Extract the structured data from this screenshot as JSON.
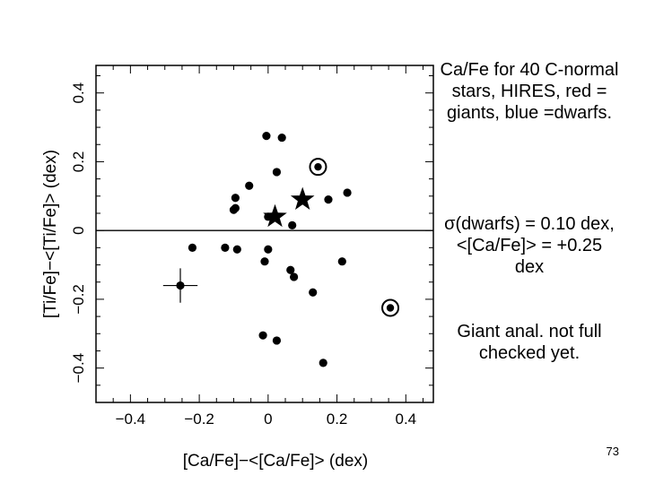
{
  "notes": {
    "line1": "Ca/Fe for 40 C-normal stars, HIRES, red = giants, blue =dwarfs.",
    "line2": "σ(dwarfs) = 0.10 dex, <[Ca/Fe]> = +0.25 dex",
    "line3": "Giant anal. not full checked yet."
  },
  "slide_number": "73",
  "chart_data": {
    "type": "scatter",
    "title": "",
    "xlabel": "[Ca/Fe]−<[Ca/Fe]> (dex)",
    "ylabel": "[Ti/Fe]−<[Ti/Fe]> (dex)",
    "xlim": [
      -0.5,
      0.48
    ],
    "ylim": [
      -0.5,
      0.48
    ],
    "x_ticks": [
      -0.4,
      -0.2,
      0,
      0.2,
      0.4
    ],
    "x_tick_labels": [
      "−0.4",
      "−0.2",
      "0",
      "0.2",
      "0.4"
    ],
    "y_ticks": [
      -0.4,
      -0.2,
      0,
      0.2,
      0.4
    ],
    "y_tick_labels": [
      "−0.4",
      "−0.2",
      "0",
      "0.2",
      "0.4"
    ],
    "reference_line_y": 0,
    "grid": false,
    "colors": {
      "markers": "#000000",
      "axes": "#000000"
    },
    "points": [
      {
        "x": -0.005,
        "y": 0.275
      },
      {
        "x": 0.04,
        "y": 0.27
      },
      {
        "x": 0.025,
        "y": 0.17
      },
      {
        "x": -0.095,
        "y": 0.095
      },
      {
        "x": -0.055,
        "y": 0.13
      },
      {
        "x": -0.095,
        "y": 0.065
      },
      {
        "x": -0.1,
        "y": 0.06
      },
      {
        "x": 0.175,
        "y": 0.09
      },
      {
        "x": 0.23,
        "y": 0.11
      },
      {
        "x": 0.07,
        "y": 0.015
      },
      {
        "x": 0.0,
        "y": 0.04
      },
      {
        "x": -0.22,
        "y": -0.05
      },
      {
        "x": -0.125,
        "y": -0.05
      },
      {
        "x": -0.09,
        "y": -0.055
      },
      {
        "x": 0.0,
        "y": -0.055
      },
      {
        "x": -0.01,
        "y": -0.09
      },
      {
        "x": 0.065,
        "y": -0.115
      },
      {
        "x": 0.075,
        "y": -0.135
      },
      {
        "x": 0.13,
        "y": -0.18
      },
      {
        "x": 0.215,
        "y": -0.09
      },
      {
        "x": -0.015,
        "y": -0.305
      },
      {
        "x": 0.025,
        "y": -0.32
      },
      {
        "x": 0.16,
        "y": -0.385
      }
    ],
    "circled_points": [
      {
        "x": 0.145,
        "y": 0.185
      },
      {
        "x": 0.355,
        "y": -0.225
      }
    ],
    "star_points": [
      {
        "x": 0.02,
        "y": 0.04
      },
      {
        "x": 0.1,
        "y": 0.09
      }
    ],
    "error_bar_point": {
      "x": -0.255,
      "y": -0.16,
      "xerr": 0.05,
      "yerr": 0.05
    }
  }
}
